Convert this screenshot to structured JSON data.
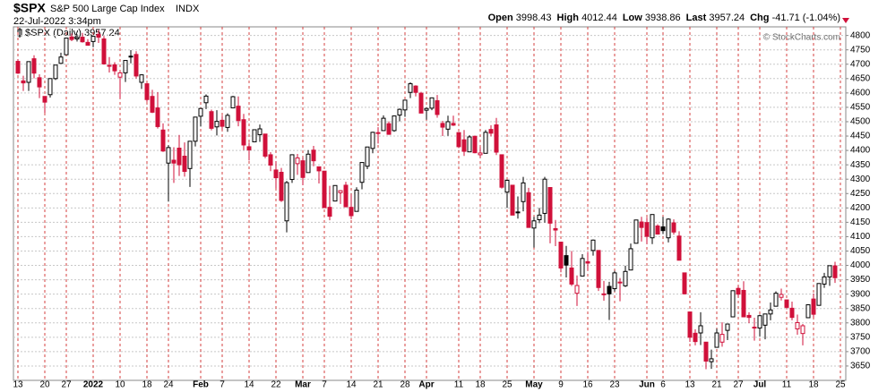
{
  "header": {
    "symbol": "$SPX",
    "name": "S&P 500 Large Cap Index",
    "exchange": "INDX",
    "timestamp": "22-Jul-2022 3:34pm",
    "quote": [
      {
        "label": "Open",
        "value": "3998.43"
      },
      {
        "label": "High",
        "value": "4012.44"
      },
      {
        "label": "Low",
        "value": "3938.86"
      },
      {
        "label": "Last",
        "value": "3957.24"
      },
      {
        "label": "Chg",
        "value": "-41.71 (-1.04%)"
      }
    ],
    "copyright": "© StockCharts.com"
  },
  "chart_data": {
    "type": "candlestick",
    "up_color": "#000000",
    "down_color": "#d0103a",
    "grid": true,
    "xgrid_color": "#d44040",
    "ygrid_color": "#c8c8c8",
    "categories": [
      "13",
      null,
      null,
      null,
      null,
      "20",
      null,
      null,
      null,
      "27",
      null,
      null,
      null,
      null,
      "2022",
      null,
      null,
      null,
      null,
      "10",
      null,
      null,
      null,
      null,
      "18",
      null,
      null,
      null,
      "24",
      null,
      null,
      null,
      null,
      null,
      "Feb",
      null,
      null,
      null,
      "7",
      null,
      null,
      null,
      null,
      "14",
      null,
      null,
      null,
      null,
      "22",
      null,
      null,
      null,
      null,
      "Mar",
      null,
      null,
      null,
      "7",
      null,
      null,
      null,
      null,
      "14",
      null,
      null,
      null,
      null,
      "21",
      null,
      null,
      null,
      null,
      "28",
      null,
      null,
      null,
      "Apr",
      null,
      null,
      null,
      null,
      null,
      "11",
      null,
      null,
      null,
      "18",
      null,
      null,
      null,
      null,
      "25",
      null,
      null,
      null,
      null,
      "May",
      null,
      null,
      null,
      null,
      "9",
      null,
      null,
      null,
      null,
      "16",
      null,
      null,
      null,
      null,
      "23",
      null,
      null,
      null,
      null,
      null,
      "Jun",
      null,
      null,
      "6",
      null,
      null,
      null,
      null,
      "13",
      null,
      null,
      null,
      null,
      "21",
      null,
      null,
      null,
      "27",
      null,
      null,
      null,
      "Jul",
      null,
      null,
      null,
      null,
      "11",
      null,
      null,
      null,
      null,
      "18",
      null,
      null,
      null,
      null,
      "25"
    ],
    "series": [
      {
        "name": "$SPX (Daily) 3957.24",
        "open": [
          4710,
          4642,
          4637,
          4719,
          4653,
          4588,
          4594,
          4650,
          4703,
          4733,
          4795,
          4788,
          4794,
          4776,
          4779,
          4804,
          4788,
          4693,
          4698,
          4655,
          4670,
          4728,
          4734,
          4637,
          4632,
          4588,
          4548,
          4471,
          4356,
          4366,
          4408,
          4380,
          4337,
          4432,
          4519,
          4566,
          4535,
          4482,
          4505,
          4480,
          4548,
          4554,
          4507,
          4413,
          4430,
          4455,
          4457,
          4385,
          4332,
          4324,
          4155,
          4299,
          4354,
          4364,
          4323,
          4401,
          4343,
          4328,
          4202,
          4224,
          4253,
          4279,
          4202,
          4188,
          4289,
          4345,
          4407,
          4462,
          4469,
          4493,
          4469,
          4523,
          4541,
          4602,
          4624,
          4599,
          4540,
          4547,
          4573,
          4494,
          4474,
          4494,
          4462,
          4437,
          4395,
          4449,
          4385,
          4390,
          4473,
          4489,
          4385,
          4255,
          4279,
          4186,
          4222,
          4253,
          4130,
          4159,
          4181,
          4271,
          4128,
          4081,
          4034,
          3991,
          3903,
          3963,
          4013,
          4052,
          4052,
          3900,
          3927,
          3919,
          3942,
          3929,
          3984,
          4077,
          4151,
          4149,
          4096,
          4137,
          4134,
          4096,
          4148,
          4102,
          3974,
          3838,
          3764,
          3765,
          3733,
          3665,
          3715,
          3733,
          3774,
          3821,
          3920,
          3913,
          3826,
          3785,
          3782,
          3792,
          3831,
          3858,
          3889,
          3880,
          3851,
          3779,
          3763,
          3818,
          3883,
          3861,
          3935,
          3960,
          3998.43,
          null
        ],
        "high": [
          4718,
          4660,
          4710,
          4731,
          4665,
          4588,
          4651,
          4697,
          4740,
          4791,
          4807,
          4804,
          4809,
          4787,
          4797,
          4819,
          4798,
          4725,
          4707,
          4673,
          4714,
          4749,
          4745,
          4665,
          4632,
          4611,
          4603,
          4494,
          4418,
          4411,
          4454,
          4428,
          4432,
          4516,
          4547,
          4595,
          4542,
          4540,
          4521,
          4529,
          4590,
          4588,
          4527,
          4427,
          4473,
          4490,
          4457,
          4394,
          4363,
          4339,
          4294,
          4385,
          4388,
          4375,
          4401,
          4416,
          4343,
          4328,
          4277,
          4278,
          4262,
          4291,
          4247,
          4272,
          4358,
          4412,
          4465,
          4481,
          4522,
          4501,
          4520,
          4546,
          4575,
          4637,
          4627,
          4604,
          4549,
          4583,
          4593,
          4503,
          4521,
          4521,
          4464,
          4471,
          4453,
          4452,
          4411,
          4471,
          4488,
          4513,
          4385,
          4299,
          4279,
          4240,
          4308,
          4270,
          4169,
          4200,
          4308,
          4271,
          4158,
          4081,
          4068,
          4050,
          3965,
          4039,
          4047,
          4090,
          4052,
          3946,
          3943,
          3981,
          3956,
          3999,
          4076,
          4158,
          4169,
          4166,
          4177,
          4143,
          4169,
          4164,
          4160,
          4119,
          3974,
          3838,
          3778,
          3837,
          3733,
          3707,
          3780,
          3802,
          3797,
          3913,
          3928,
          3945,
          3837,
          3818,
          3829,
          3832,
          3871,
          3910,
          3919,
          3880,
          3874,
          3829,
          3796,
          3864,
          3902,
          3937,
          3974,
          3999,
          4012.44,
          null
        ],
        "low": [
          4666,
          4607,
          4607,
          4651,
          4582,
          4531,
          4584,
          4645,
          4703,
          4733,
          4780,
          4779,
          4775,
          4766,
          4759,
          4774,
          4699,
          4671,
          4663,
          4582,
          4638,
          4703,
          4650,
          4614,
          4569,
          4530,
          4476,
          4395,
          4222,
          4287,
          4311,
          4309,
          4273,
          4414,
          4483,
          4544,
          4470,
          4452,
          4471,
          4465,
          4547,
          4484,
          4401,
          4365,
          4430,
          4430,
          4373,
          4328,
          4268,
          4221,
          4115,
          4287,
          4315,
          4279,
          4323,
          4345,
          4285,
          4200,
          4157,
          4224,
          4214,
          4202,
          4161,
          4188,
          4265,
          4335,
          4390,
          4424,
          4469,
          4455,
          4465,
          4501,
          4517,
          4582,
          4588,
          4531,
          4507,
          4540,
          4514,
          4450,
          4451,
          4485,
          4408,
          4381,
          4395,
          4390,
          4375,
          4390,
          4449,
          4384,
          4267,
          4200,
          4175,
          4163,
          4188,
          4131,
          4062,
          4147,
          4149,
          4077,
          4067,
          3976,
          3958,
          3928,
          3859,
          3963,
          3983,
          4034,
          3911,
          3877,
          3810,
          3909,
          3875,
          3925,
          3984,
          4077,
          4083,
          4074,
          4074,
          4107,
          4109,
          4080,
          4107,
          4018,
          3901,
          3734,
          3722,
          3723,
          3639,
          3640,
          3715,
          3717,
          3740,
          3821,
          3889,
          3820,
          3799,
          3738,
          3753,
          3743,
          3809,
          3858,
          3878,
          3847,
          3809,
          3759,
          3722,
          3818,
          3818,
          3861,
          3922,
          3929,
          3938.86,
          null
        ],
        "close": [
          4669,
          4635,
          4709,
          4669,
          4621,
          4568,
          4650,
          4697,
          4725,
          4791,
          4786,
          4793,
          4778,
          4766,
          4797,
          4794,
          4701,
          4696,
          4677,
          4670,
          4713,
          4726,
          4659,
          4663,
          4577,
          4533,
          4483,
          4398,
          4410,
          4356,
          4350,
          4327,
          4432,
          4516,
          4546,
          4589,
          4477,
          4501,
          4484,
          4522,
          4587,
          4504,
          4419,
          4402,
          4472,
          4475,
          4380,
          4349,
          4305,
          4226,
          4288,
          4385,
          4374,
          4306,
          4387,
          4364,
          4329,
          4201,
          4171,
          4278,
          4260,
          4204,
          4173,
          4262,
          4358,
          4412,
          4463,
          4461,
          4512,
          4456,
          4520,
          4543,
          4575,
          4632,
          4602,
          4530,
          4546,
          4583,
          4525,
          4481,
          4500,
          4488,
          4413,
          4397,
          4447,
          4392,
          4391,
          4463,
          4460,
          4394,
          4272,
          4296,
          4175,
          4183,
          4287,
          4132,
          4155,
          4175,
          4300,
          4147,
          4123,
          3991,
          4001,
          3935,
          3930,
          4024,
          4008,
          4088,
          3923,
          3901,
          3901,
          3974,
          3941,
          3979,
          4058,
          4158,
          4132,
          4101,
          4177,
          4109,
          4121,
          4161,
          4116,
          4018,
          3901,
          3750,
          3735,
          3790,
          3667,
          3675,
          3765,
          3760,
          3796,
          3912,
          3900,
          3821,
          3819,
          3785,
          3825,
          3831,
          3845,
          3903,
          3899,
          3854,
          3819,
          3801,
          3790,
          3863,
          3830,
          3937,
          3960,
          3999,
          3957.24,
          null
        ]
      }
    ],
    "ylim": [
      3600,
      4830
    ],
    "yticks": [
      3650,
      3700,
      3750,
      3800,
      3850,
      3900,
      3950,
      4000,
      4050,
      4100,
      4150,
      4200,
      4250,
      4300,
      4350,
      4400,
      4450,
      4500,
      4550,
      4600,
      4650,
      4700,
      4750,
      4800
    ]
  }
}
